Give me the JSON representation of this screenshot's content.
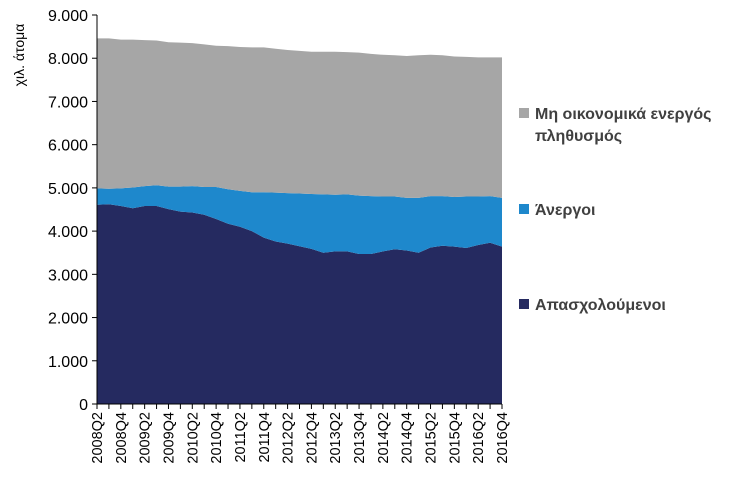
{
  "chart_data": {
    "type": "area",
    "stacked": true,
    "ylabel": "χιλ. άτομα",
    "xlabel": "",
    "ylim": [
      0,
      9000
    ],
    "y_ticks": [
      "0",
      "1.000",
      "2.000",
      "3.000",
      "4.000",
      "5.000",
      "6.000",
      "7.000",
      "8.000",
      "9.000"
    ],
    "x_tick_labels": [
      "2008Q2",
      "2008Q4",
      "2009Q2",
      "2009Q4",
      "2010Q2",
      "2010Q4",
      "2011Q2",
      "2011Q4",
      "2012Q2",
      "2012Q4",
      "2013Q2",
      "2013Q4",
      "2014Q2",
      "2014Q4",
      "2015Q2",
      "2015Q4",
      "2016Q2",
      "2016Q4"
    ],
    "x": [
      "2008Q2",
      "2008Q3",
      "2008Q4",
      "2009Q1",
      "2009Q2",
      "2009Q3",
      "2009Q4",
      "2010Q1",
      "2010Q2",
      "2010Q3",
      "2010Q4",
      "2011Q1",
      "2011Q2",
      "2011Q3",
      "2011Q4",
      "2012Q1",
      "2012Q2",
      "2012Q3",
      "2012Q4",
      "2013Q1",
      "2013Q2",
      "2013Q3",
      "2013Q4",
      "2014Q1",
      "2014Q2",
      "2014Q3",
      "2014Q4",
      "2015Q1",
      "2015Q2",
      "2015Q3",
      "2015Q4",
      "2016Q1",
      "2016Q2",
      "2016Q3",
      "2016Q4"
    ],
    "grid": false,
    "legend_position": "right",
    "series": [
      {
        "name": "Απασχολούμενοι",
        "color": "#252a60",
        "values": [
          4610,
          4620,
          4580,
          4530,
          4580,
          4580,
          4510,
          4450,
          4430,
          4380,
          4280,
          4170,
          4100,
          4000,
          3850,
          3760,
          3710,
          3650,
          3590,
          3500,
          3530,
          3530,
          3470,
          3470,
          3530,
          3580,
          3550,
          3500,
          3620,
          3660,
          3640,
          3610,
          3680,
          3730,
          3640
        ]
      },
      {
        "name": "Άνεργοι",
        "color": "#1e88cc",
        "values": [
          380,
          360,
          410,
          480,
          460,
          480,
          520,
          580,
          610,
          640,
          740,
          800,
          830,
          900,
          1050,
          1130,
          1170,
          1220,
          1270,
          1350,
          1310,
          1320,
          1350,
          1340,
          1270,
          1220,
          1220,
          1270,
          1190,
          1150,
          1150,
          1190,
          1120,
          1080,
          1130
        ]
      },
      {
        "name": "Μη οικονομικά ενεργός πληθυσμός",
        "legend_lines": [
          "Μη οικονομικά ενεργός",
          "πληθυσμός"
        ],
        "color": "#a6a6a6",
        "values": [
          3470,
          3480,
          3440,
          3420,
          3380,
          3350,
          3340,
          3330,
          3310,
          3300,
          3270,
          3310,
          3330,
          3350,
          3350,
          3330,
          3310,
          3300,
          3290,
          3300,
          3310,
          3290,
          3310,
          3290,
          3280,
          3270,
          3280,
          3300,
          3270,
          3260,
          3250,
          3230,
          3220,
          3210,
          3250
        ]
      }
    ]
  }
}
